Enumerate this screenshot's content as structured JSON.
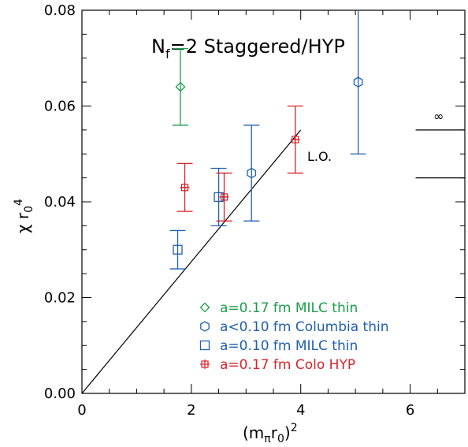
{
  "chart_data": {
    "type": "scatter",
    "title": "N_f=2 Staggered/HYP",
    "title_main": "N",
    "title_sub": "f",
    "title_rest": "=2 Staggered/HYP",
    "xlabel": "(m_π r_0)^2",
    "ylabel": "χ r_0^4",
    "xlim": [
      0,
      7
    ],
    "ylim": [
      0,
      0.08
    ],
    "x_ticks": [
      0,
      2,
      4,
      6
    ],
    "x_tick_labels": [
      "0",
      "2",
      "4",
      "6"
    ],
    "y_ticks": [
      0,
      0.02,
      0.04,
      0.06,
      0.08
    ],
    "y_tick_labels": [
      "0.00",
      "0.02",
      "0.04",
      "0.06",
      "0.08"
    ],
    "grid": false,
    "legend_position": "bottom-right",
    "series": [
      {
        "name": "a=0.17 fm MILC thin",
        "marker": "diamond",
        "color": "#1a9e4a",
        "points": [
          {
            "x": 1.8,
            "y": 0.064,
            "ylo": 0.056,
            "yhi": 0.072
          }
        ]
      },
      {
        "name": "a<0.10 fm Columbia thin",
        "marker": "hexagon",
        "color": "#1f5fb0",
        "points": [
          {
            "x": 3.1,
            "y": 0.046,
            "ylo": 0.036,
            "yhi": 0.056
          },
          {
            "x": 5.05,
            "y": 0.065,
            "ylo": 0.05,
            "yhi": 0.08
          }
        ]
      },
      {
        "name": "a=0.10 fm MILC thin",
        "marker": "square",
        "color": "#1f5fb0",
        "points": [
          {
            "x": 1.75,
            "y": 0.03,
            "ylo": 0.026,
            "yhi": 0.034
          },
          {
            "x": 2.5,
            "y": 0.041,
            "ylo": 0.035,
            "yhi": 0.047
          }
        ]
      },
      {
        "name": "a=0.17 fm Colo HYP",
        "marker": "crossbox",
        "color": "#d8232a",
        "points": [
          {
            "x": 1.88,
            "y": 0.043,
            "ylo": 0.038,
            "yhi": 0.048,
            "xerr": 0.08
          },
          {
            "x": 2.6,
            "y": 0.041,
            "ylo": 0.036,
            "yhi": 0.046,
            "xerr": 0.08
          },
          {
            "x": 3.9,
            "y": 0.053,
            "ylo": 0.046,
            "yhi": 0.06,
            "xerr": 0.08
          }
        ]
      }
    ],
    "lo_line": {
      "label": "L.O.",
      "x0": 0,
      "y0": 0,
      "x1": 4,
      "y1": 0.055
    },
    "infinity_band": {
      "label": "∞",
      "x_start": 6.1,
      "x_end": 7,
      "y_upper": 0.055,
      "y_lower": 0.045
    }
  }
}
